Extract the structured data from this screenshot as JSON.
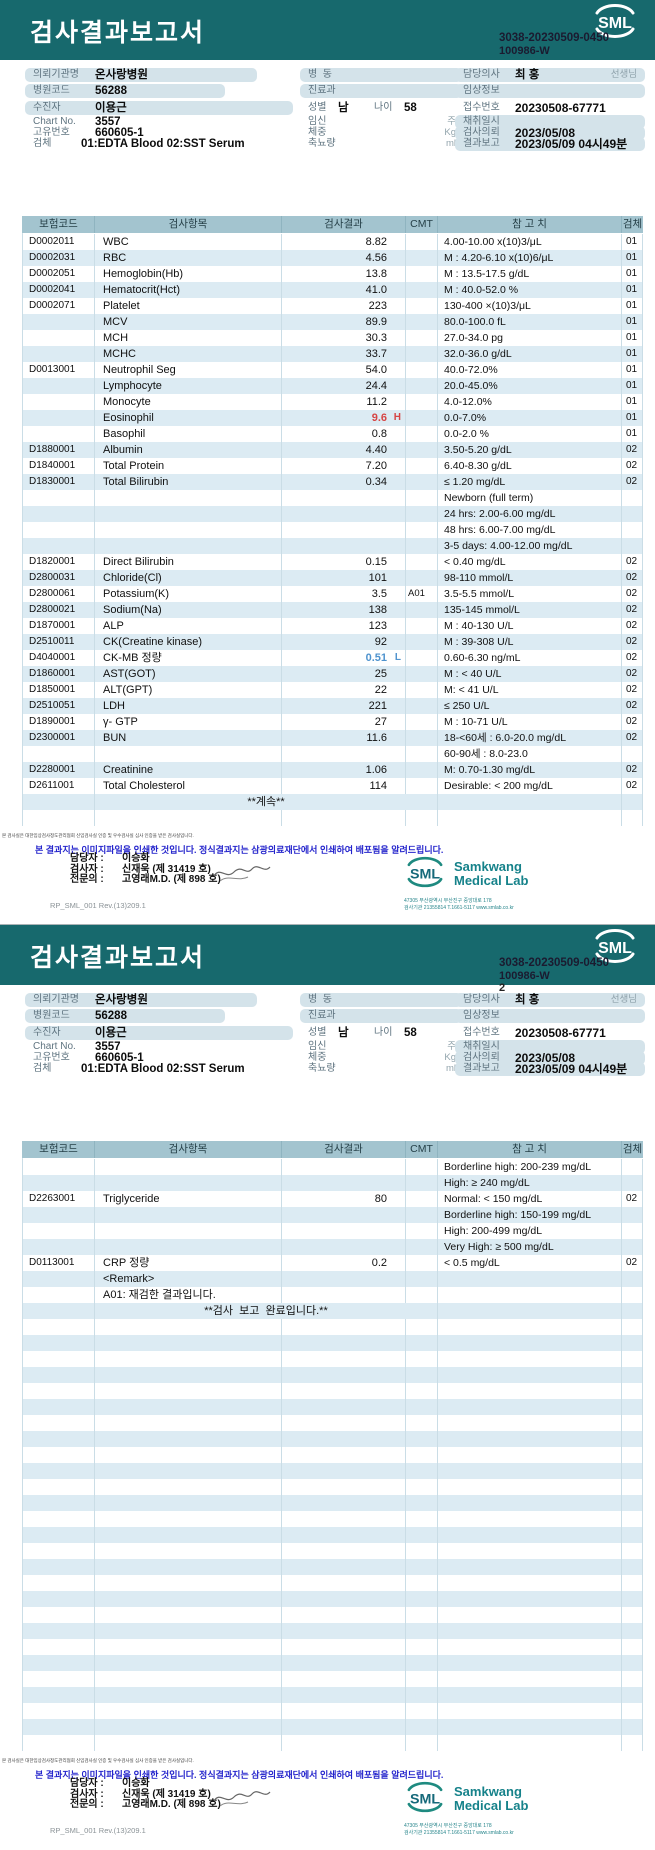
{
  "header": {
    "title": "검사결과보고서",
    "logo": "SML",
    "code_line1": "3038-20230509-0450",
    "code_line2": "100986-W",
    "page2_number": "2"
  },
  "info": {
    "client_label": "의뢰기관명",
    "client": "온사랑병원",
    "hospital_code_label": "병원코드",
    "hospital_code": "56288",
    "patient_label": "수진자",
    "patient": "이용근",
    "chart_label": "Chart No.",
    "chart": "3557",
    "uid_label": "고유번호",
    "uid": "660605-1",
    "specimen_label": "검체",
    "specimen": "01:EDTA Blood 02:SST Serum",
    "ward_label": "병  동",
    "dept_label": "진료과",
    "sex_label": "성별",
    "sex": "남",
    "age_label": "나이",
    "age": "58",
    "pregnancy_label": "임신",
    "pregnancy_unit": "주",
    "weight_label": "체중",
    "weight_unit": "Kg",
    "urine_label": "축뇨량",
    "urine_unit": "ml",
    "doctor_label": "담당의사",
    "doctor": "최 홍",
    "doctor_suffix": "선생님",
    "clinical_label": "임상정보",
    "receipt_label": "접수번호",
    "receipt_no": "20230508-67771",
    "collected_label": "채취일시",
    "requested_label": "검사의뢰",
    "requested": "2023/05/08",
    "reported_label": "결과보고",
    "reported": "2023/05/09 04시49분"
  },
  "table": {
    "headers": [
      "보험코드",
      "검사항목",
      "검사결과",
      "CMT",
      "참 고 치",
      "검체"
    ],
    "page1_rows": [
      {
        "code": "D0002011",
        "item": "WBC",
        "result": "8.82",
        "ref": "4.00-10.00 x(10)3/μL",
        "spec": "01"
      },
      {
        "code": "D0002031",
        "item": "RBC",
        "result": "4.56",
        "ref": "M : 4.20-6.10 x(10)6/μL",
        "spec": "01"
      },
      {
        "code": "D0002051",
        "item": "Hemoglobin(Hb)",
        "result": "13.8",
        "ref": "M : 13.5-17.5 g/dL",
        "spec": "01"
      },
      {
        "code": "D0002041",
        "item": "Hematocrit(Hct)",
        "result": "41.0",
        "ref": "M : 40.0-52.0 %",
        "spec": "01"
      },
      {
        "code": "D0002071",
        "item": "Platelet",
        "result": "223",
        "ref": "130-400 ×(10)3/μL",
        "spec": "01"
      },
      {
        "item": "MCV",
        "result": "89.9",
        "ref": "80.0-100.0 fL",
        "spec": "01"
      },
      {
        "item": "MCH",
        "result": "30.3",
        "ref": "27.0-34.0 pg",
        "spec": "01"
      },
      {
        "item": "MCHC",
        "result": "33.7",
        "ref": "32.0-36.0 g/dL",
        "spec": "01"
      },
      {
        "code": "D0013001",
        "item": "Neutrophil Seg",
        "result": "54.0",
        "ref": "40.0-72.0%",
        "spec": "01"
      },
      {
        "item": "Lymphocyte",
        "result": "24.4",
        "ref": "20.0-45.0%",
        "spec": "01"
      },
      {
        "item": "Monocyte",
        "result": "11.2",
        "ref": "4.0-12.0%",
        "spec": "01"
      },
      {
        "item": "Eosinophil",
        "result": "9.6",
        "flag": "H",
        "ref": "0.0-7.0%",
        "spec": "01"
      },
      {
        "item": "Basophil",
        "result": "0.8",
        "ref": "0.0-2.0 %",
        "spec": "01"
      },
      {
        "code": "D1880001",
        "item": "Albumin",
        "result": "4.40",
        "ref": "3.50-5.20 g/dL",
        "spec": "02"
      },
      {
        "code": "D1840001",
        "item": "Total Protein",
        "result": "7.20",
        "ref": "6.40-8.30 g/dL",
        "spec": "02"
      },
      {
        "code": "D1830001",
        "item": "Total Bilirubin",
        "result": "0.34",
        "ref": "≤ 1.20 mg/dL",
        "spec": "02"
      },
      {
        "ref": "Newborn (full term)"
      },
      {
        "ref": "24 hrs: 2.00-6.00 mg/dL"
      },
      {
        "ref": "48 hrs: 6.00-7.00 mg/dL"
      },
      {
        "ref": "3-5 days: 4.00-12.00 mg/dL"
      },
      {
        "code": "D1820001",
        "item": "Direct Bilirubin",
        "result": "0.15",
        "ref": "< 0.40 mg/dL",
        "spec": "02"
      },
      {
        "code": "D2800031",
        "item": "Chloride(Cl)",
        "result": "101",
        "ref": "98-110 mmol/L",
        "spec": "02"
      },
      {
        "code": "D2800061",
        "item": "Potassium(K)",
        "result": "3.5",
        "cmt": "A01",
        "ref": "3.5-5.5 mmol/L",
        "spec": "02"
      },
      {
        "code": "D2800021",
        "item": "Sodium(Na)",
        "result": "138",
        "ref": "135-145 mmol/L",
        "spec": "02"
      },
      {
        "code": "D1870001",
        "item": "ALP",
        "result": "123",
        "ref": "M : 40-130 U/L",
        "spec": "02"
      },
      {
        "code": "D2510011",
        "item": "CK(Creatine kinase)",
        "result": "92",
        "ref": "M : 39-308 U/L",
        "spec": "02"
      },
      {
        "code": "D4040001",
        "item": "CK-MB 정량",
        "result": "0.51",
        "flag": "L",
        "ref": "0.60-6.30 ng/mL",
        "spec": "02"
      },
      {
        "code": "D1860001",
        "item": "AST(GOT)",
        "result": "25",
        "ref": "M : < 40 U/L",
        "spec": "02"
      },
      {
        "code": "D1850001",
        "item": "ALT(GPT)",
        "result": "22",
        "ref": "M: < 41 U/L",
        "spec": "02"
      },
      {
        "code": "D2510051",
        "item": "LDH",
        "result": "221",
        "ref": "≤ 250 U/L",
        "spec": "02"
      },
      {
        "code": "D1890001",
        "item": "γ- GTP",
        "result": "27",
        "ref": "M : 10-71 U/L",
        "spec": "02"
      },
      {
        "code": "D2300001",
        "item": "BUN",
        "result": "11.6",
        "ref": "18-<60세 : 6.0-20.0 mg/dL",
        "spec": "02"
      },
      {
        "ref": "60-90세 : 8.0-23.0"
      },
      {
        "code": "D2280001",
        "item": "Creatinine",
        "result": "1.06",
        "ref": "M: 0.70-1.30 mg/dL",
        "spec": "02"
      },
      {
        "code": "D2611001",
        "item": "Total Cholesterol",
        "result": "114",
        "ref": "Desirable: < 200 mg/dL",
        "spec": "02"
      },
      {
        "note": "**계속**"
      }
    ],
    "page2_rows": [
      {
        "ref": "Borderline high: 200-239 mg/dL"
      },
      {
        "ref": "High: ≥ 240 mg/dL"
      },
      {
        "code": "D2263001",
        "item": "Triglyceride",
        "result": "80",
        "ref": "Normal: < 150 mg/dL",
        "spec": "02"
      },
      {
        "ref": "Borderline high: 150-199 mg/dL"
      },
      {
        "ref": "High: 200-499 mg/dL"
      },
      {
        "ref": "Very High: ≥ 500 mg/dL"
      },
      {
        "code": "D0113001",
        "item": "CRP 정량",
        "result": "0.2",
        "ref": "< 0.5 mg/dL",
        "spec": "02"
      },
      {
        "item": "<Remark>"
      },
      {
        "item": "A01: 재검한 결과입니다."
      },
      {
        "note": "**검사  보고  완료입니다.**"
      }
    ]
  },
  "footer": {
    "certification": "본 검사실은 대한임상검사정도관리협회 신임검사실 인증 및 우수검사실 심사 인증을 받은 검사실입니다.",
    "notice": "본 결과지는 이미지파일을 인쇄한 것입니다. 정식결과지는 삼광의료재단에서 인쇄하여 배포됨을 알려드립니다.",
    "staff": [
      {
        "role": "담당자 :",
        "name": "이승화"
      },
      {
        "role": "검사자 :",
        "name": "신재욱 (제 31419 호)"
      },
      {
        "role": "전문의 :",
        "name": "고영래M.D. (제 898 호)"
      }
    ],
    "doc_code": "RP_SML_001 Rev.(13)209.1",
    "logo": {
      "mark": "SML",
      "wordmark1": "Samkwang",
      "wordmark2": "Medical Lab",
      "address1": "47305 부산광역시 부산진구 중앙대로 178",
      "address2": "검사기관 21355814 T.1661-5117 www.smlab.co.kr"
    }
  },
  "colors": {
    "header_teal": "#17696d",
    "row_stripe": "#dcebf3",
    "flag_high_red": "#d64545",
    "flag_low_blue": "#4f93ce",
    "logo_teal": "#16828a"
  }
}
